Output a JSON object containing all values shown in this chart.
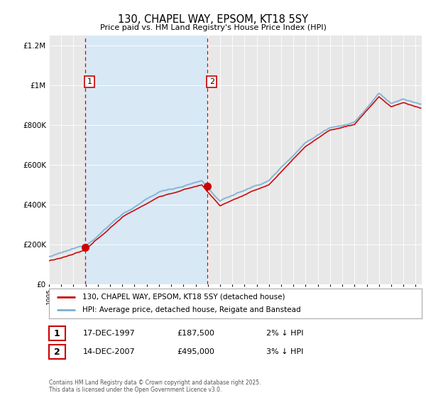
{
  "title": "130, CHAPEL WAY, EPSOM, KT18 5SY",
  "subtitle": "Price paid vs. HM Land Registry's House Price Index (HPI)",
  "legend_line1": "130, CHAPEL WAY, EPSOM, KT18 5SY (detached house)",
  "legend_line2": "HPI: Average price, detached house, Reigate and Banstead",
  "annotation1_date": "17-DEC-1997",
  "annotation1_price": 187500,
  "annotation2_date": "14-DEC-2007",
  "annotation2_price": 495000,
  "sale1_year": 1997.96,
  "sale2_year": 2007.96,
  "ylim": [
    0,
    1250000
  ],
  "yticks": [
    0,
    200000,
    400000,
    600000,
    800000,
    1000000,
    1200000
  ],
  "footer": "Contains HM Land Registry data © Crown copyright and database right 2025.\nThis data is licensed under the Open Government Licence v3.0.",
  "line_color_price": "#cc0000",
  "line_color_hpi": "#7ab0d4",
  "dashed_color": "#cc0000",
  "shade_color": "#d8e8f5",
  "background_color": "#ffffff",
  "plot_bg_color": "#e8e8e8"
}
